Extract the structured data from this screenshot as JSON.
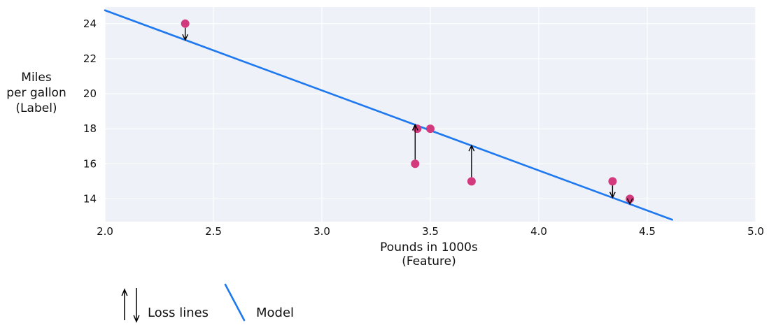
{
  "chart_data": {
    "type": "scatter",
    "title": "",
    "xlabel": "Pounds in 1000s (Feature)",
    "ylabel": "Miles per gallon (Label)",
    "xlabel_lines": [
      "Pounds in 1000s",
      "(Feature)"
    ],
    "ylabel_lines": [
      "Miles",
      "per gallon",
      "(Label)"
    ],
    "xlim": [
      2.0,
      5.0
    ],
    "ylim": [
      12.7,
      24.95
    ],
    "x_ticks": [
      "2.0",
      "2.5",
      "3.0",
      "3.5",
      "4.0",
      "4.5",
      "5.0"
    ],
    "y_ticks": [
      14,
      16,
      18,
      20,
      22,
      24
    ],
    "grid": true,
    "points": [
      {
        "x": 2.37,
        "y": 24
      },
      {
        "x": 3.43,
        "y": 16
      },
      {
        "x": 3.44,
        "y": 18
      },
      {
        "x": 3.5,
        "y": 18
      },
      {
        "x": 3.69,
        "y": 15
      },
      {
        "x": 4.34,
        "y": 15
      },
      {
        "x": 4.42,
        "y": 14
      }
    ],
    "model_line": {
      "slope": -4.57,
      "intercept": 33.9,
      "x_start": 2.0,
      "x_end": 4.615
    },
    "loss_lines": [
      {
        "x": 2.37,
        "from_y": 24.0,
        "to_y": 23.07,
        "direction": "down"
      },
      {
        "x": 3.43,
        "from_y": 16.0,
        "to_y": 18.23,
        "direction": "up"
      },
      {
        "x": 3.69,
        "from_y": 15.0,
        "to_y": 17.04,
        "direction": "up"
      },
      {
        "x": 4.34,
        "from_y": 15.0,
        "to_y": 14.07,
        "direction": "down"
      },
      {
        "x": 4.42,
        "from_y": 14.0,
        "to_y": 13.71,
        "direction": "down"
      }
    ],
    "legend": [
      {
        "label": "Loss lines",
        "symbol": "arrows"
      },
      {
        "label": "Model",
        "symbol": "line"
      }
    ],
    "colors": {
      "point": "#d33a7d",
      "model_line": "#1e78f0",
      "loss_line": "#000000",
      "plot_bg": "#eef1f8",
      "grid": "#ffffff",
      "text": "#111111"
    }
  }
}
